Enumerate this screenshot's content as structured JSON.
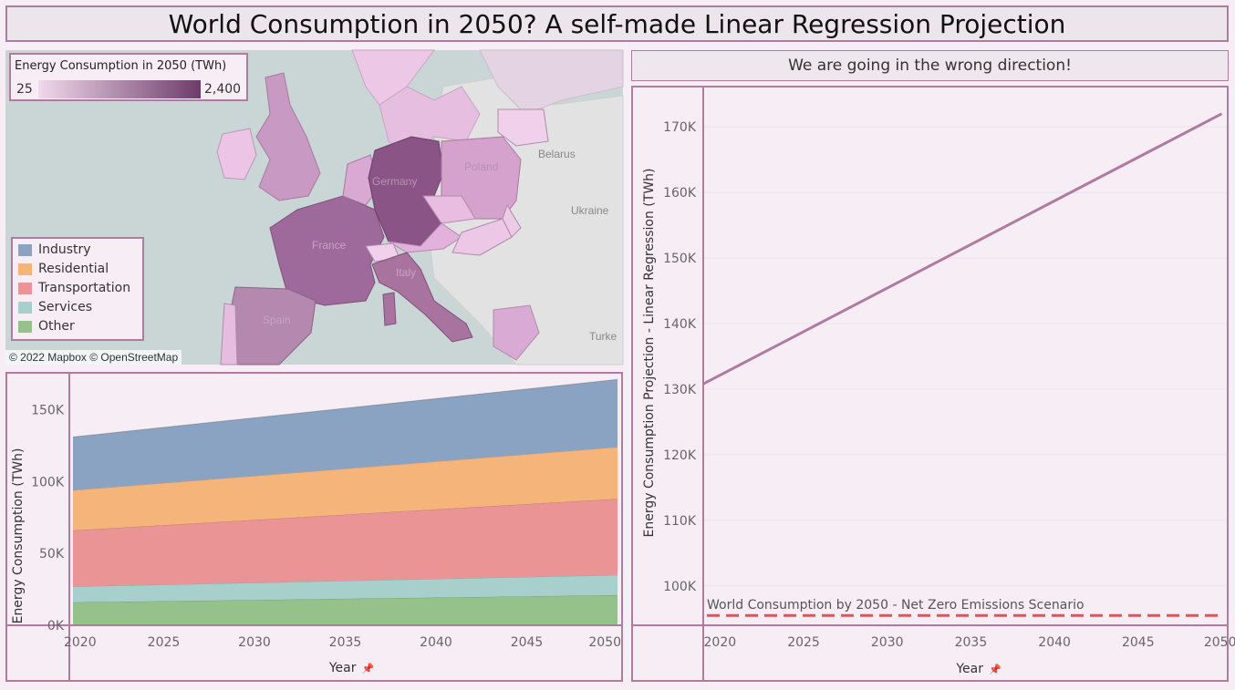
{
  "header": {
    "title": "World Consumption in 2050? A self-made Linear Regression Projection"
  },
  "subtitle": "We are going in the wrong direction!",
  "map": {
    "color_legend": {
      "title": "Energy Consumption in 2050 (TWh)",
      "min": "25",
      "max": "2,400",
      "color_low": "#f0d9ec",
      "color_high": "#6e3c6b"
    },
    "labels": {
      "belarus": "Belarus",
      "ukraine": "Ukraine",
      "poland": "Poland",
      "germany": "Germany",
      "france": "France",
      "spain": "Spain",
      "italy": "Italy",
      "turkey": "Turke"
    },
    "credit": "© 2022 Mapbox © OpenStreetMap",
    "category_legend": [
      {
        "label": "Industry",
        "color": "#8aa3c3"
      },
      {
        "label": "Residential",
        "color": "#f4b47a"
      },
      {
        "label": "Transportation",
        "color": "#ea9496"
      },
      {
        "label": "Services",
        "color": "#a7cfcc"
      },
      {
        "label": "Other",
        "color": "#95c28b"
      }
    ]
  },
  "chart_data": [
    {
      "type": "area",
      "stacked": true,
      "x": [
        2020,
        2050
      ],
      "x_ticks": [
        "2020",
        "2025",
        "2030",
        "2035",
        "2040",
        "2045",
        "2050"
      ],
      "xlabel": "Year",
      "ylabel": "Energy Consumption (TWh)",
      "y_ticks": [
        "0K",
        "50K",
        "100K",
        "150K"
      ],
      "ylim": [
        0,
        175000
      ],
      "series": [
        {
          "name": "Other",
          "values": [
            16000,
            21000
          ],
          "color": "#95c28b"
        },
        {
          "name": "Services",
          "values": [
            11000,
            14000
          ],
          "color": "#a7cfcc"
        },
        {
          "name": "Transportation",
          "values": [
            39000,
            53000
          ],
          "color": "#ea9496"
        },
        {
          "name": "Residential",
          "values": [
            28000,
            36000
          ],
          "color": "#f4b47a"
        },
        {
          "name": "Industry",
          "values": [
            37000,
            47000
          ],
          "color": "#8aa3c3"
        }
      ]
    },
    {
      "type": "line",
      "x": [
        2019,
        2050
      ],
      "y": [
        130800,
        172000
      ],
      "x_ticks": [
        "2020",
        "2025",
        "2030",
        "2035",
        "2040",
        "2045",
        "2050"
      ],
      "xlabel": "Year",
      "ylabel": "Energy Consumption Projection - Linear Regression (TWh)",
      "y_ticks": [
        "100K",
        "110K",
        "120K",
        "130K",
        "140K",
        "150K",
        "160K",
        "170K"
      ],
      "ylim": [
        94000,
        176000
      ],
      "line_color": "#b07aa1",
      "reference_line": {
        "label": "World Consumption by 2050 - Net Zero Emissions Scenario",
        "value": 95500,
        "color": "#d45a5a"
      }
    }
  ]
}
